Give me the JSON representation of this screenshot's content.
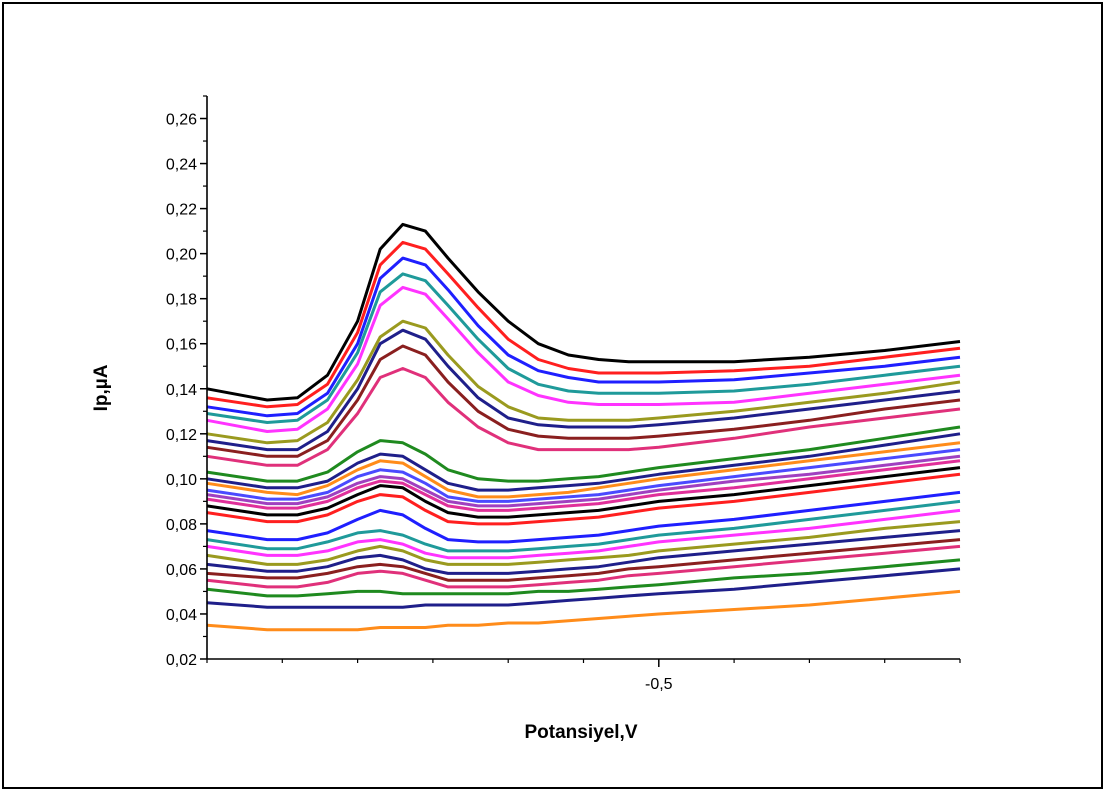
{
  "chart_data": {
    "type": "line",
    "title": "",
    "xlabel": "Potansiyel,V",
    "ylabel": "Ip,µA",
    "xlim": [
      -0.8,
      -0.3
    ],
    "ylim": [
      0.02,
      0.27
    ],
    "x_ticks": [
      {
        "value": -0.5,
        "label": "-0,5"
      }
    ],
    "y_ticks": [
      {
        "value": 0.02,
        "label": "0,02"
      },
      {
        "value": 0.04,
        "label": "0,04"
      },
      {
        "value": 0.06,
        "label": "0,06"
      },
      {
        "value": 0.08,
        "label": "0,08"
      },
      {
        "value": 0.1,
        "label": "0,10"
      },
      {
        "value": 0.12,
        "label": "0,12"
      },
      {
        "value": 0.14,
        "label": "0,14"
      },
      {
        "value": 0.16,
        "label": "0,16"
      },
      {
        "value": 0.18,
        "label": "0,18"
      },
      {
        "value": 0.2,
        "label": "0,20"
      },
      {
        "value": 0.22,
        "label": "0,22"
      },
      {
        "value": 0.24,
        "label": "0,24"
      },
      {
        "value": 0.26,
        "label": "0,26"
      }
    ],
    "grid": false,
    "legend": "none",
    "x": [
      -0.8,
      -0.76,
      -0.74,
      -0.72,
      -0.7,
      -0.685,
      -0.67,
      -0.655,
      -0.64,
      -0.62,
      -0.6,
      -0.58,
      -0.56,
      -0.54,
      -0.52,
      -0.5,
      -0.45,
      -0.4,
      -0.35,
      -0.3
    ],
    "series": [
      {
        "color": "#000000",
        "values": [
          0.14,
          0.135,
          0.136,
          0.146,
          0.17,
          0.202,
          0.213,
          0.21,
          0.198,
          0.183,
          0.17,
          0.16,
          0.155,
          0.153,
          0.152,
          0.152,
          0.152,
          0.154,
          0.157,
          0.161
        ]
      },
      {
        "color": "#ff1f1f",
        "values": [
          0.136,
          0.132,
          0.133,
          0.142,
          0.165,
          0.195,
          0.205,
          0.202,
          0.191,
          0.176,
          0.162,
          0.153,
          0.149,
          0.147,
          0.147,
          0.147,
          0.148,
          0.15,
          0.154,
          0.158
        ]
      },
      {
        "color": "#1f1fff",
        "values": [
          0.132,
          0.128,
          0.129,
          0.138,
          0.16,
          0.189,
          0.198,
          0.195,
          0.184,
          0.168,
          0.155,
          0.148,
          0.145,
          0.143,
          0.143,
          0.143,
          0.144,
          0.147,
          0.15,
          0.154
        ]
      },
      {
        "color": "#1f9a9a",
        "values": [
          0.129,
          0.125,
          0.126,
          0.135,
          0.156,
          0.183,
          0.191,
          0.188,
          0.177,
          0.162,
          0.149,
          0.142,
          0.139,
          0.138,
          0.138,
          0.138,
          0.139,
          0.142,
          0.146,
          0.15
        ]
      },
      {
        "color": "#ff33ff",
        "values": [
          0.126,
          0.121,
          0.122,
          0.131,
          0.151,
          0.177,
          0.185,
          0.182,
          0.171,
          0.156,
          0.143,
          0.137,
          0.134,
          0.133,
          0.133,
          0.133,
          0.134,
          0.138,
          0.142,
          0.146
        ]
      },
      {
        "color": "#9a9a1f",
        "values": [
          0.12,
          0.116,
          0.117,
          0.125,
          0.144,
          0.163,
          0.17,
          0.167,
          0.155,
          0.141,
          0.132,
          0.127,
          0.126,
          0.126,
          0.126,
          0.127,
          0.13,
          0.134,
          0.138,
          0.143
        ]
      },
      {
        "color": "#1f1f8a",
        "values": [
          0.117,
          0.113,
          0.113,
          0.121,
          0.14,
          0.16,
          0.166,
          0.162,
          0.15,
          0.136,
          0.127,
          0.124,
          0.123,
          0.123,
          0.123,
          0.124,
          0.127,
          0.131,
          0.135,
          0.139
        ]
      },
      {
        "color": "#8a1f1f",
        "values": [
          0.114,
          0.11,
          0.11,
          0.117,
          0.135,
          0.153,
          0.159,
          0.155,
          0.143,
          0.13,
          0.122,
          0.119,
          0.118,
          0.118,
          0.118,
          0.119,
          0.122,
          0.126,
          0.131,
          0.135
        ]
      },
      {
        "color": "#e0307a",
        "values": [
          0.11,
          0.106,
          0.106,
          0.113,
          0.129,
          0.145,
          0.149,
          0.145,
          0.134,
          0.123,
          0.116,
          0.113,
          0.113,
          0.113,
          0.113,
          0.114,
          0.118,
          0.123,
          0.127,
          0.131
        ]
      },
      {
        "color": "#1f8a1f",
        "values": [
          0.103,
          0.099,
          0.099,
          0.103,
          0.112,
          0.117,
          0.116,
          0.111,
          0.104,
          0.1,
          0.099,
          0.099,
          0.1,
          0.101,
          0.103,
          0.105,
          0.109,
          0.113,
          0.118,
          0.123
        ]
      },
      {
        "color": "#1f1f8a",
        "values": [
          0.1,
          0.096,
          0.096,
          0.099,
          0.107,
          0.111,
          0.11,
          0.104,
          0.098,
          0.095,
          0.095,
          0.096,
          0.097,
          0.098,
          0.1,
          0.102,
          0.106,
          0.11,
          0.115,
          0.12
        ]
      },
      {
        "color": "#ff8c1a",
        "values": [
          0.098,
          0.094,
          0.093,
          0.097,
          0.104,
          0.108,
          0.107,
          0.101,
          0.095,
          0.092,
          0.092,
          0.093,
          0.094,
          0.096,
          0.098,
          0.1,
          0.104,
          0.108,
          0.112,
          0.116
        ]
      },
      {
        "color": "#4a4aff",
        "values": [
          0.095,
          0.091,
          0.091,
          0.094,
          0.101,
          0.104,
          0.103,
          0.098,
          0.092,
          0.09,
          0.09,
          0.091,
          0.092,
          0.093,
          0.095,
          0.097,
          0.101,
          0.105,
          0.109,
          0.113
        ]
      },
      {
        "color": "#a040c0",
        "values": [
          0.093,
          0.089,
          0.089,
          0.092,
          0.098,
          0.101,
          0.1,
          0.095,
          0.09,
          0.088,
          0.088,
          0.089,
          0.09,
          0.091,
          0.093,
          0.095,
          0.099,
          0.102,
          0.106,
          0.11
        ]
      },
      {
        "color": "#e0309a",
        "values": [
          0.091,
          0.087,
          0.087,
          0.09,
          0.096,
          0.099,
          0.098,
          0.093,
          0.088,
          0.086,
          0.086,
          0.087,
          0.088,
          0.089,
          0.091,
          0.093,
          0.096,
          0.1,
          0.104,
          0.108
        ]
      },
      {
        "color": "#000000",
        "values": [
          0.088,
          0.084,
          0.084,
          0.087,
          0.093,
          0.097,
          0.096,
          0.09,
          0.085,
          0.083,
          0.083,
          0.084,
          0.085,
          0.086,
          0.088,
          0.09,
          0.093,
          0.097,
          0.101,
          0.105
        ]
      },
      {
        "color": "#ff1f1f",
        "values": [
          0.085,
          0.081,
          0.081,
          0.084,
          0.09,
          0.093,
          0.092,
          0.086,
          0.081,
          0.08,
          0.08,
          0.081,
          0.082,
          0.083,
          0.085,
          0.087,
          0.09,
          0.094,
          0.098,
          0.102
        ]
      },
      {
        "color": "#1f1fff",
        "values": [
          0.077,
          0.073,
          0.073,
          0.076,
          0.082,
          0.086,
          0.084,
          0.078,
          0.073,
          0.072,
          0.072,
          0.073,
          0.074,
          0.075,
          0.077,
          0.079,
          0.082,
          0.086,
          0.09,
          0.094
        ]
      },
      {
        "color": "#1f9a9a",
        "values": [
          0.073,
          0.069,
          0.069,
          0.072,
          0.076,
          0.077,
          0.075,
          0.071,
          0.068,
          0.068,
          0.068,
          0.069,
          0.07,
          0.071,
          0.073,
          0.075,
          0.078,
          0.082,
          0.086,
          0.09
        ]
      },
      {
        "color": "#ff33ff",
        "values": [
          0.07,
          0.066,
          0.066,
          0.068,
          0.072,
          0.073,
          0.071,
          0.067,
          0.065,
          0.065,
          0.065,
          0.066,
          0.067,
          0.068,
          0.07,
          0.072,
          0.075,
          0.078,
          0.082,
          0.086
        ]
      },
      {
        "color": "#9a9a1f",
        "values": [
          0.066,
          0.062,
          0.062,
          0.064,
          0.068,
          0.07,
          0.068,
          0.064,
          0.062,
          0.062,
          0.062,
          0.063,
          0.064,
          0.065,
          0.066,
          0.068,
          0.071,
          0.074,
          0.078,
          0.081
        ]
      },
      {
        "color": "#1f1f8a",
        "values": [
          0.062,
          0.059,
          0.059,
          0.061,
          0.065,
          0.066,
          0.064,
          0.06,
          0.058,
          0.058,
          0.058,
          0.059,
          0.06,
          0.061,
          0.063,
          0.065,
          0.068,
          0.071,
          0.074,
          0.077
        ]
      },
      {
        "color": "#8a1f1f",
        "values": [
          0.058,
          0.056,
          0.056,
          0.058,
          0.061,
          0.062,
          0.061,
          0.058,
          0.055,
          0.055,
          0.055,
          0.056,
          0.057,
          0.058,
          0.06,
          0.061,
          0.064,
          0.067,
          0.07,
          0.073
        ]
      },
      {
        "color": "#e0307a",
        "values": [
          0.055,
          0.052,
          0.052,
          0.054,
          0.058,
          0.059,
          0.058,
          0.055,
          0.052,
          0.052,
          0.052,
          0.053,
          0.054,
          0.055,
          0.057,
          0.058,
          0.061,
          0.064,
          0.067,
          0.07
        ]
      },
      {
        "color": "#1f8a1f",
        "values": [
          0.051,
          0.048,
          0.048,
          0.049,
          0.05,
          0.05,
          0.049,
          0.049,
          0.049,
          0.049,
          0.049,
          0.05,
          0.05,
          0.051,
          0.052,
          0.053,
          0.056,
          0.058,
          0.061,
          0.064
        ]
      },
      {
        "color": "#1f1f8a",
        "values": [
          0.045,
          0.043,
          0.043,
          0.043,
          0.043,
          0.043,
          0.043,
          0.044,
          0.044,
          0.044,
          0.044,
          0.045,
          0.046,
          0.047,
          0.048,
          0.049,
          0.051,
          0.054,
          0.057,
          0.06
        ]
      },
      {
        "color": "#ff8c1a",
        "values": [
          0.035,
          0.033,
          0.033,
          0.033,
          0.033,
          0.034,
          0.034,
          0.034,
          0.035,
          0.035,
          0.036,
          0.036,
          0.037,
          0.038,
          0.039,
          0.04,
          0.042,
          0.044,
          0.047,
          0.05
        ]
      }
    ]
  }
}
